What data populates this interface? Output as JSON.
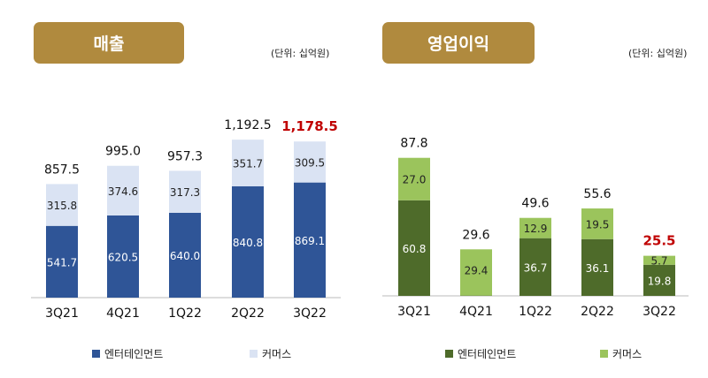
{
  "chart_data": [
    {
      "type": "bar",
      "stacked": true,
      "title": "매출",
      "unit": "(단위:  십억원)",
      "categories": [
        "3Q21",
        "4Q21",
        "1Q22",
        "2Q22",
        "3Q22"
      ],
      "series": [
        {
          "name": "엔터테인먼트",
          "color": "#2f5597",
          "label_color": "#ffffff",
          "values": [
            541.7,
            620.5,
            640.0,
            840.8,
            869.1
          ]
        },
        {
          "name": "커머스",
          "color": "#dae3f3",
          "label_color": "#222222",
          "values": [
            315.8,
            374.6,
            317.3,
            351.7,
            309.5
          ]
        }
      ],
      "totals": [
        "857.5",
        "995.0",
        "957.3",
        "1,192.5",
        "1,178.5"
      ],
      "highlight_color": "#c00000",
      "highlight_index": 4
    },
    {
      "type": "bar",
      "stacked": true,
      "title": "영업이익",
      "unit": "(단위:  십억원)",
      "categories": [
        "3Q21",
        "4Q21",
        "1Q22",
        "2Q22",
        "3Q22"
      ],
      "series": [
        {
          "name": "엔터테인먼트",
          "color": "#4e6b2a",
          "label_color": "#ffffff",
          "values": [
            60.8,
            0.2,
            36.7,
            36.1,
            19.8
          ]
        },
        {
          "name": "커머스",
          "color": "#9bc45c",
          "label_color": "#222222",
          "values": [
            27.0,
            29.4,
            12.9,
            19.5,
            5.7
          ]
        }
      ],
      "totals": [
        "87.8",
        "29.6",
        "49.6",
        "55.6",
        "25.5"
      ],
      "highlight_color": "#c00000",
      "highlight_index": 4
    }
  ]
}
